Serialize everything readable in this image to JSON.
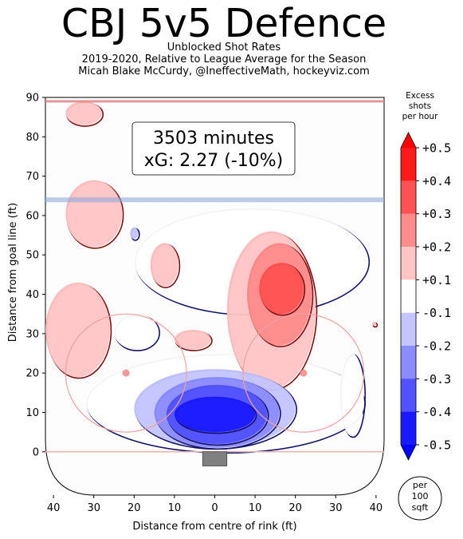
{
  "title": "CBJ 5v5 Defence",
  "subtitle_lines": [
    "Unblocked Shot Rates",
    "2019-2020, Relative to League Average for the Season",
    "Micah Blake McCurdy, @IneffectiveMath, hockeyviz.com"
  ],
  "annotation": {
    "line1": "3503 minutes",
    "line2": "xG: 2.27 (-10%)"
  },
  "colorbar": {
    "title_lines": [
      "Excess",
      "shots",
      "per hour"
    ],
    "tick_labels": [
      "+0.5",
      "+0.4",
      "+0.3",
      "+0.2",
      "+0.1",
      "-0.1",
      "-0.2",
      "-0.3",
      "-0.4",
      "-0.5"
    ],
    "levels": [
      0.5,
      0.4,
      0.3,
      0.2,
      0.1,
      -0.1,
      -0.2,
      -0.3,
      -0.4,
      -0.5
    ],
    "band_colors": [
      "#ff1a1a",
      "#ff5252",
      "#ff8c8c",
      "#ffc4c4",
      "#ffffff",
      "#c4c4ff",
      "#8c8cff",
      "#5252ff",
      "#1a1aff"
    ],
    "over_color": "#ff0000",
    "under_color": "#0000ff",
    "unit_badge_lines": [
      "per",
      "100",
      "sqft"
    ]
  },
  "chart_data": {
    "type": "heatmap",
    "title": "CBJ 5v5 Defence",
    "xlabel": "Distance from centre of rink (ft)",
    "ylabel": "Distance from goal line (ft)",
    "xlim": [
      42,
      -42
    ],
    "ylim": [
      -11,
      90
    ],
    "x_ticks": [
      40,
      30,
      20,
      10,
      0,
      10,
      20,
      30,
      40
    ],
    "x_tick_values": [
      40,
      30,
      20,
      10,
      0,
      -10,
      -20,
      -30,
      -40
    ],
    "y_ticks": [
      0,
      10,
      20,
      30,
      40,
      50,
      60,
      70,
      80,
      90
    ],
    "grid": false,
    "legend": "right colorbar",
    "rink_lines": {
      "goal_line_ft": 0,
      "blue_line_ft": 64,
      "red_line_ft": 89
    },
    "faceoff_circles": [
      {
        "x": 22,
        "y": 20,
        "r": 15
      },
      {
        "x": -22,
        "y": 20,
        "r": 15
      }
    ],
    "regions": [
      {
        "level": -0.5,
        "x_range": [
          -10,
          10
        ],
        "y_range": [
          5,
          14
        ],
        "peak_y": 10
      },
      {
        "level": -0.4,
        "x_range": [
          -13,
          12
        ],
        "y_range": [
          2,
          17
        ]
      },
      {
        "level": -0.3,
        "x_range": [
          -16,
          15
        ],
        "y_range": [
          1,
          19
        ]
      },
      {
        "level": -0.2,
        "x_range": [
          -20,
          20
        ],
        "y_range": [
          1,
          21
        ]
      },
      {
        "level": -0.1,
        "x_range": [
          -37,
          32
        ],
        "y_range": [
          0,
          25
        ]
      },
      {
        "level": -0.1,
        "x_range": [
          -38,
          20
        ],
        "y_range": [
          35,
          62
        ]
      },
      {
        "level": -0.1,
        "x_range": [
          -37,
          -31
        ],
        "y_range": [
          4,
          25
        ]
      },
      {
        "level": -0.1,
        "x_range": [
          14,
          25
        ],
        "y_range": [
          26,
          35
        ]
      },
      {
        "level": -0.2,
        "x_range": [
          19,
          21
        ],
        "y_range": [
          54,
          57
        ]
      },
      {
        "level": 0.1,
        "x_range": [
          -25,
          -3
        ],
        "y_range": [
          16,
          56
        ]
      },
      {
        "level": 0.2,
        "x_range": [
          -24,
          -8
        ],
        "y_range": [
          27,
          53
        ]
      },
      {
        "level": 0.3,
        "x_range": [
          -22,
          -11
        ],
        "y_range": [
          35,
          48
        ]
      },
      {
        "level": 0.1,
        "x_range": [
          26,
          42
        ],
        "y_range": [
          19,
          43
        ]
      },
      {
        "level": 0.1,
        "x_range": [
          23,
          37
        ],
        "y_range": [
          52,
          69
        ]
      },
      {
        "level": 0.1,
        "x_range": [
          9,
          16
        ],
        "y_range": [
          42,
          53
        ]
      },
      {
        "level": 0.1,
        "x_range": [
          1,
          10
        ],
        "y_range": [
          26,
          31
        ]
      },
      {
        "level": 0.1,
        "x_range": [
          28,
          37
        ],
        "y_range": [
          83,
          89
        ]
      },
      {
        "level": 0.1,
        "x_range": [
          -40,
          -39
        ],
        "y_range": [
          32,
          33
        ]
      }
    ]
  },
  "x_axis_label": "Distance from centre of rink (ft)",
  "y_axis_label": "Distance from goal line (ft)"
}
